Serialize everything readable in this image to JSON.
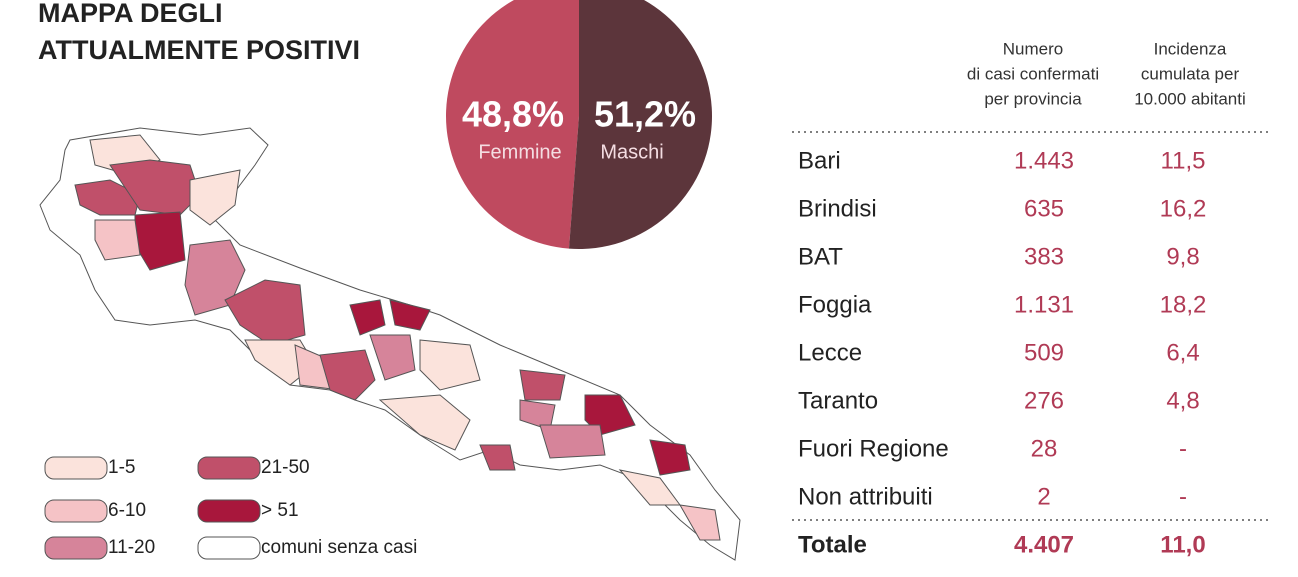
{
  "title": [
    "MAPPA DEGLI",
    "ATTUALMENTE POSITIVI"
  ],
  "chart_data": {
    "type": "pie",
    "categories": [
      "Femmine",
      "Maschi"
    ],
    "values": [
      48.8,
      51.2
    ],
    "value_labels": [
      "48,8%",
      "51,2%"
    ],
    "colors": [
      "#bf4a5f",
      "#5c353b"
    ]
  },
  "legend": [
    {
      "label": "1-5",
      "color": "#fbe3dc"
    },
    {
      "label": "6-10",
      "color": "#f5c3c6"
    },
    {
      "label": "11-20",
      "color": "#d6849a"
    },
    {
      "label": "21-50",
      "color": "#c0506a"
    },
    {
      "label": "> 51",
      "color": "#a8173c"
    },
    {
      "label": "comuni senza casi",
      "color": "#ffffff"
    }
  ],
  "table": {
    "header": [
      [
        "Numero",
        "di casi confermati",
        "per provincia"
      ],
      [
        "Incidenza",
        "cumulata per",
        "10.000 abitanti"
      ]
    ],
    "rows": [
      [
        "Bari",
        "1.443",
        "11,5"
      ],
      [
        "Brindisi",
        "635",
        "16,2"
      ],
      [
        "BAT",
        "383",
        "9,8"
      ],
      [
        "Foggia",
        "1.131",
        "18,2"
      ],
      [
        "Lecce",
        "509",
        "6,4"
      ],
      [
        "Taranto",
        "276",
        "4,8"
      ],
      [
        "Fuori Regione",
        "28",
        "-"
      ],
      [
        "Non attribuiti",
        "2",
        "-"
      ]
    ],
    "total": [
      "Totale",
      "4.407",
      "11,0"
    ]
  }
}
